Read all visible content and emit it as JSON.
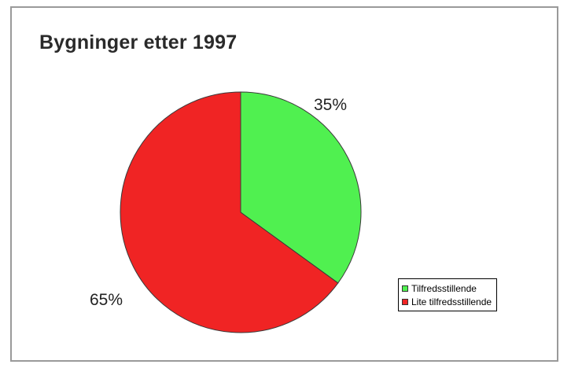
{
  "chart_data": {
    "type": "pie",
    "title": "Bygninger etter 1997",
    "categories": [
      "Tilfredsstillende",
      "Lite tilfredsstillende"
    ],
    "values": [
      35,
      65
    ],
    "data_labels": [
      "35%",
      "65%"
    ],
    "colors": [
      "#50f050",
      "#f02424"
    ],
    "legend_placement": "bottom-right"
  }
}
